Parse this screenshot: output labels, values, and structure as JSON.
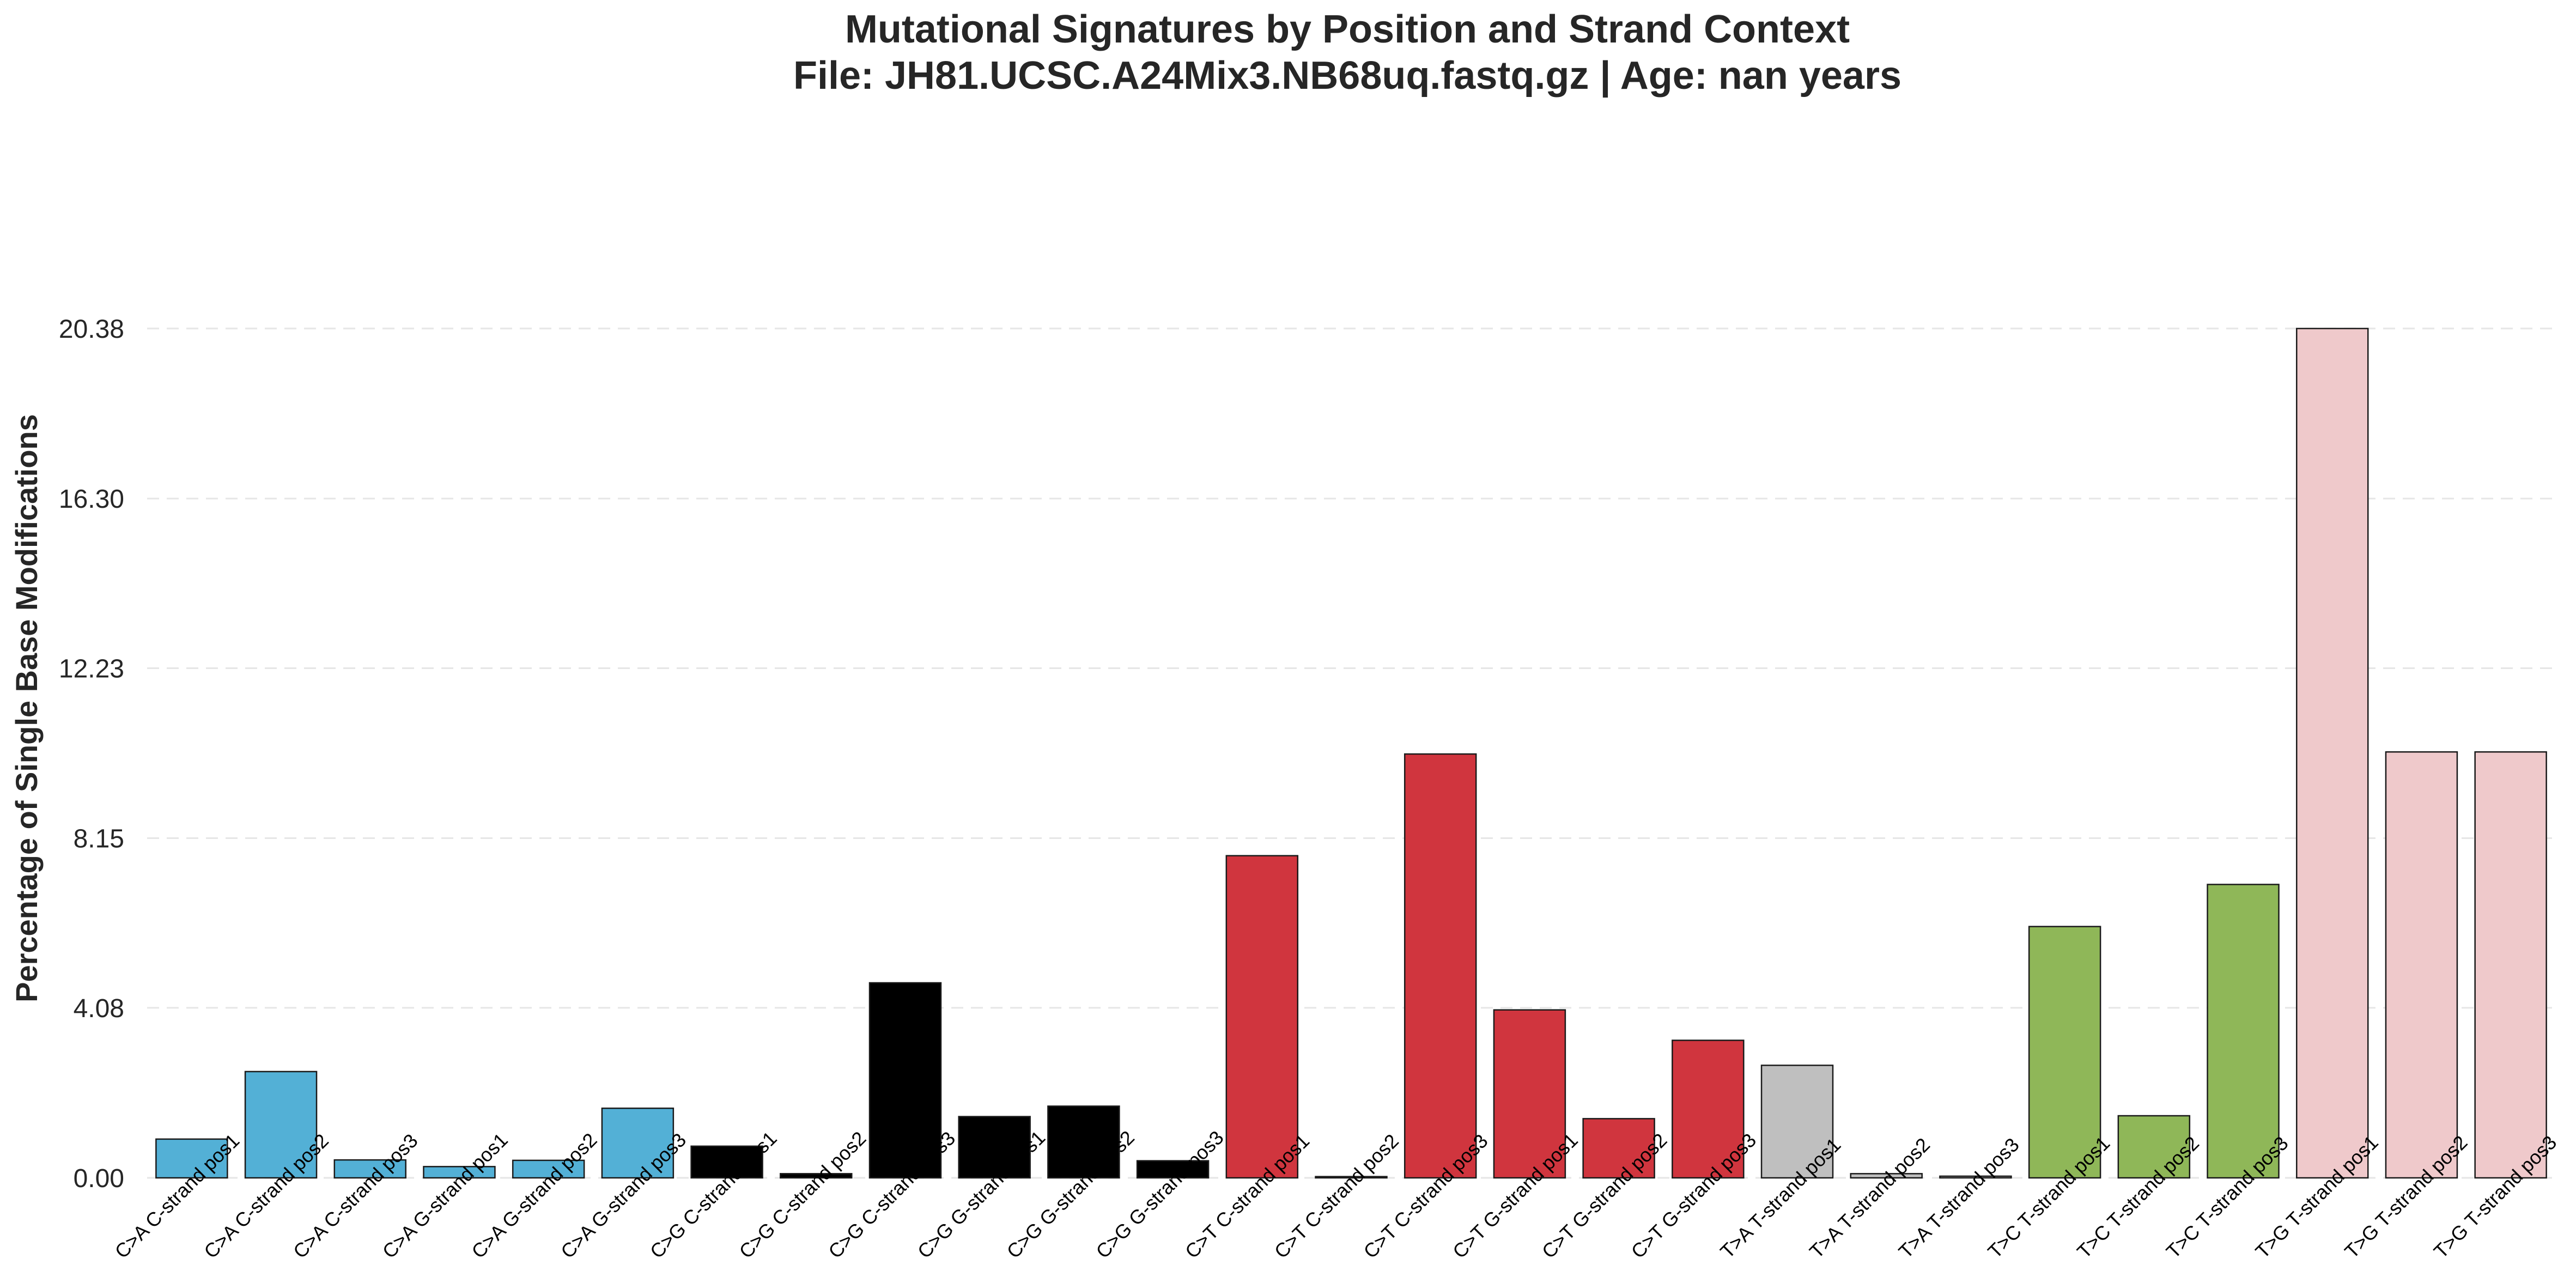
{
  "chart_data": {
    "type": "bar",
    "title_line1": "Mutational Signatures by Position and Strand Context",
    "title_line2": "File: JH81.UCSC.A24Mix3.NB68uq.fastq.gz | Age: nan years",
    "xlabel": "",
    "ylabel": "Percentage of Single Base Modifications",
    "ylim": [
      0,
      20.38
    ],
    "yticks": [
      "0.00",
      "4.08",
      "8.15",
      "12.23",
      "16.30",
      "20.38"
    ],
    "grid": "horizontal dashed",
    "categories": [
      "C>A C-strand pos1",
      "C>A C-strand pos2",
      "C>A C-strand pos3",
      "C>A G-strand pos1",
      "C>A G-strand pos2",
      "C>A G-strand pos3",
      "C>G C-strand pos1",
      "C>G C-strand pos2",
      "C>G C-strand pos3",
      "C>G G-strand pos1",
      "C>G G-strand pos2",
      "C>G G-strand pos3",
      "C>T C-strand pos1",
      "C>T C-strand pos2",
      "C>T C-strand pos3",
      "C>T G-strand pos1",
      "C>T G-strand pos2",
      "C>T G-strand pos3",
      "T>A T-strand pos1",
      "T>A T-strand pos2",
      "T>A T-strand pos3",
      "T>C T-strand pos1",
      "T>C T-strand pos2",
      "T>C T-strand pos3",
      "T>G T-strand pos1",
      "T>G T-strand pos2",
      "T>G T-strand pos3"
    ],
    "values": [
      0.93,
      2.55,
      0.43,
      0.27,
      0.42,
      1.67,
      0.76,
      0.1,
      4.68,
      1.47,
      1.72,
      0.41,
      7.73,
      0.03,
      10.17,
      4.03,
      1.42,
      3.3,
      2.7,
      0.1,
      0.04,
      6.03,
      1.49,
      7.04,
      20.38,
      10.22,
      10.22
    ],
    "colors": [
      "#53b0d6",
      "#53b0d6",
      "#53b0d6",
      "#53b0d6",
      "#53b0d6",
      "#53b0d6",
      "#000000",
      "#000000",
      "#000000",
      "#000000",
      "#000000",
      "#000000",
      "#d0353e",
      "#d0353e",
      "#d0353e",
      "#d0353e",
      "#d0353e",
      "#d0353e",
      "#bfbfbf",
      "#bfbfbf",
      "#bfbfbf",
      "#8fb758",
      "#8fb758",
      "#8fb758",
      "#efc9cb",
      "#efc9cb",
      "#efc9cb"
    ]
  }
}
